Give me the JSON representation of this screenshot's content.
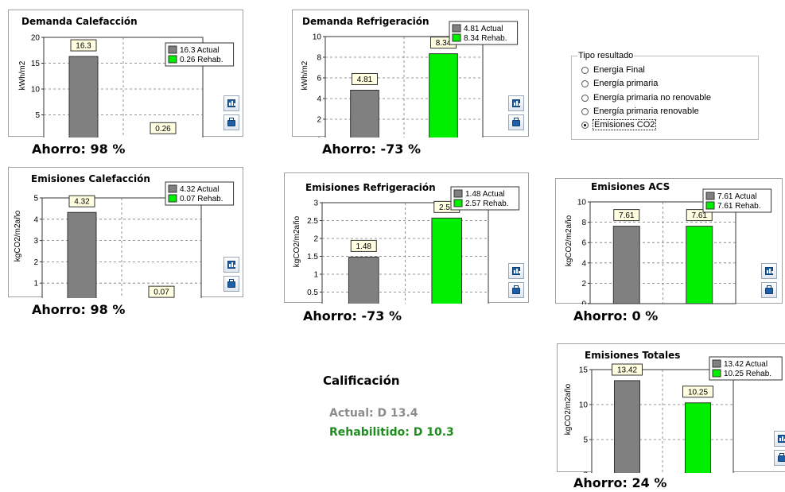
{
  "colors": {
    "actual": "#808080",
    "rehab": "#00ee00",
    "label_bg": "#fffee0",
    "icon": "#1f5fa5"
  },
  "chart_data": [
    {
      "type": "bar",
      "title": "Demanda Calefacción",
      "ylabel": "kWh/m2",
      "categories": [
        "Actual",
        "Rehab."
      ],
      "ylim": [
        0,
        20
      ],
      "yticks": [
        0,
        5,
        10,
        15,
        20
      ],
      "values": [
        16.3,
        0.26
      ],
      "labels": [
        "16.3",
        "0.26"
      ],
      "legend": [
        "16.3 Actual",
        "0.26 Rehab."
      ]
    },
    {
      "type": "bar",
      "title": "Demanda Refrigeración",
      "ylabel": "kWh/m2",
      "categories": [
        "Actual",
        "Rehab."
      ],
      "ylim": [
        0,
        10
      ],
      "yticks": [
        0,
        2,
        4,
        6,
        8,
        10
      ],
      "values": [
        4.81,
        8.34
      ],
      "labels": [
        "4.81",
        "8.34"
      ],
      "legend": [
        "4.81 Actual",
        "8.34 Rehab."
      ]
    },
    {
      "type": "bar",
      "title": "Emisiones Calefacción",
      "ylabel": "kgCO2/m2año",
      "categories": [
        "Actual",
        "Rehab."
      ],
      "ylim": [
        0,
        5
      ],
      "yticks": [
        0,
        1,
        2,
        3,
        4,
        5
      ],
      "values": [
        4.32,
        0.07
      ],
      "labels": [
        "4.32",
        "0.07"
      ],
      "legend": [
        "4.32 Actual",
        "0.07 Rehab."
      ]
    },
    {
      "type": "bar",
      "title": "Emisiones Refrigeración",
      "ylabel": "kgCO2/m2año",
      "categories": [
        "Actual",
        "Rehab."
      ],
      "ylim": [
        0,
        3
      ],
      "yticks": [
        0,
        0.5,
        1,
        1.5,
        2,
        2.5,
        3
      ],
      "values": [
        1.48,
        2.57
      ],
      "labels": [
        "1.48",
        "2.57"
      ],
      "legend": [
        "1.48 Actual",
        "2.57 Rehab."
      ]
    },
    {
      "type": "bar",
      "title": "Emisiones ACS",
      "ylabel": "kgCO2/m2año",
      "categories": [
        "Actual",
        "Rehab."
      ],
      "ylim": [
        0,
        10
      ],
      "yticks": [
        0,
        2,
        4,
        6,
        8,
        10
      ],
      "values": [
        7.61,
        7.61
      ],
      "labels": [
        "7.61",
        "7.61"
      ],
      "legend": [
        "7.61 Actual",
        "7.61 Rehab."
      ]
    },
    {
      "type": "bar",
      "title": "Emisiones Totales",
      "ylabel": "kgCO2/m2año",
      "categories": [
        "Actual",
        "Rehab."
      ],
      "ylim": [
        0,
        15
      ],
      "yticks": [
        0,
        5,
        10,
        15
      ],
      "values": [
        13.42,
        10.25
      ],
      "labels": [
        "13.42",
        "10.25"
      ],
      "legend": [
        "13.42 Actual",
        "10.25 Rehab."
      ]
    }
  ],
  "ahorro": [
    "Ahorro: 98 %",
    "Ahorro: -73 %",
    "Ahorro: 98 %",
    "Ahorro: -73 %",
    "Ahorro: 0 %",
    "Ahorro: 24 %"
  ],
  "tipo_resultado": {
    "legend": "Tipo resultado",
    "options": [
      "Energia Final",
      "Energía primaria",
      "Energía primaria no renovable",
      "Energía primaria renovable",
      "Emisiones CO2"
    ],
    "selected_index": 4
  },
  "calificacion": {
    "title": "Calificación",
    "actual": "Actual: D 13.4",
    "rehabilitado": "Rehabilitido: D 10.3"
  },
  "icons": {
    "chart_button": "bar-chart-icon",
    "print_button": "printer-icon"
  }
}
